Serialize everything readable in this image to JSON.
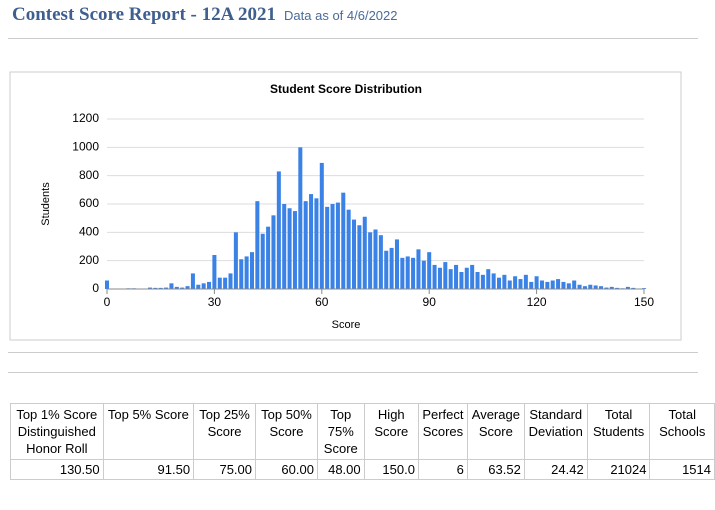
{
  "header": {
    "title": "Contest Score Report -  12A 2021",
    "subtitle": "Data as of 4/6/2022"
  },
  "chart_data": {
    "type": "histogram",
    "title": "Student Score Distribution",
    "xlabel": "Score",
    "ylabel": "Students",
    "color": "#3b82e6",
    "grid": true,
    "xlim": [
      0,
      150
    ],
    "xticks": [
      0,
      30,
      60,
      90,
      120,
      150
    ],
    "ylim": [
      0,
      1200
    ],
    "yticks": [
      0,
      200,
      400,
      600,
      800,
      1000,
      1200
    ],
    "x": [
      0,
      1.5,
      3,
      4.5,
      6,
      7.5,
      9,
      10.5,
      12,
      13.5,
      15,
      16.5,
      18,
      19.5,
      21,
      22.5,
      24,
      25.5,
      27,
      28.5,
      30,
      31.5,
      33,
      34.5,
      36,
      37.5,
      39,
      40.5,
      42,
      43.5,
      45,
      46.5,
      48,
      49.5,
      51,
      52.5,
      54,
      55.5,
      57,
      58.5,
      60,
      61.5,
      63,
      64.5,
      66,
      67.5,
      69,
      70.5,
      72,
      73.5,
      75,
      76.5,
      78,
      79.5,
      81,
      82.5,
      84,
      85.5,
      87,
      88.5,
      90,
      91.5,
      93,
      94.5,
      96,
      97.5,
      99,
      100.5,
      102,
      103.5,
      105,
      106.5,
      108,
      109.5,
      111,
      112.5,
      114,
      115.5,
      117,
      118.5,
      120,
      121.5,
      123,
      124.5,
      126,
      127.5,
      129,
      130.5,
      132,
      133.5,
      135,
      136.5,
      138,
      139.5,
      141,
      142.5,
      144,
      145.5,
      147,
      148.5,
      150
    ],
    "values": [
      60,
      0,
      0,
      0,
      5,
      5,
      0,
      3,
      10,
      8,
      8,
      10,
      40,
      15,
      10,
      20,
      110,
      30,
      40,
      50,
      240,
      80,
      80,
      110,
      400,
      210,
      230,
      260,
      620,
      390,
      440,
      520,
      830,
      600,
      570,
      550,
      1000,
      620,
      670,
      640,
      890,
      580,
      600,
      610,
      680,
      560,
      490,
      450,
      510,
      400,
      420,
      380,
      270,
      290,
      350,
      220,
      230,
      220,
      280,
      200,
      260,
      170,
      150,
      190,
      140,
      170,
      120,
      150,
      170,
      120,
      100,
      140,
      110,
      80,
      100,
      60,
      90,
      70,
      100,
      50,
      90,
      60,
      50,
      60,
      70,
      50,
      40,
      60,
      30,
      20,
      30,
      25,
      20,
      10,
      15,
      8,
      5,
      15,
      8,
      3,
      6
    ]
  },
  "table": {
    "headers": [
      "Top 1% Score Distinguished Honor Roll",
      "Top 5% Score",
      "Top 25% Score",
      "Top 50% Score",
      "Top 75% Score",
      "High Score",
      "Perfect Scores",
      "Average Score",
      "Standard Deviation",
      "Total Students",
      "Total Schools"
    ],
    "rows": [
      [
        "130.50",
        "91.50",
        "75.00",
        "60.00",
        "48.00",
        "150.0",
        "6",
        "63.52",
        "24.42",
        "21024",
        "1514"
      ]
    ]
  }
}
